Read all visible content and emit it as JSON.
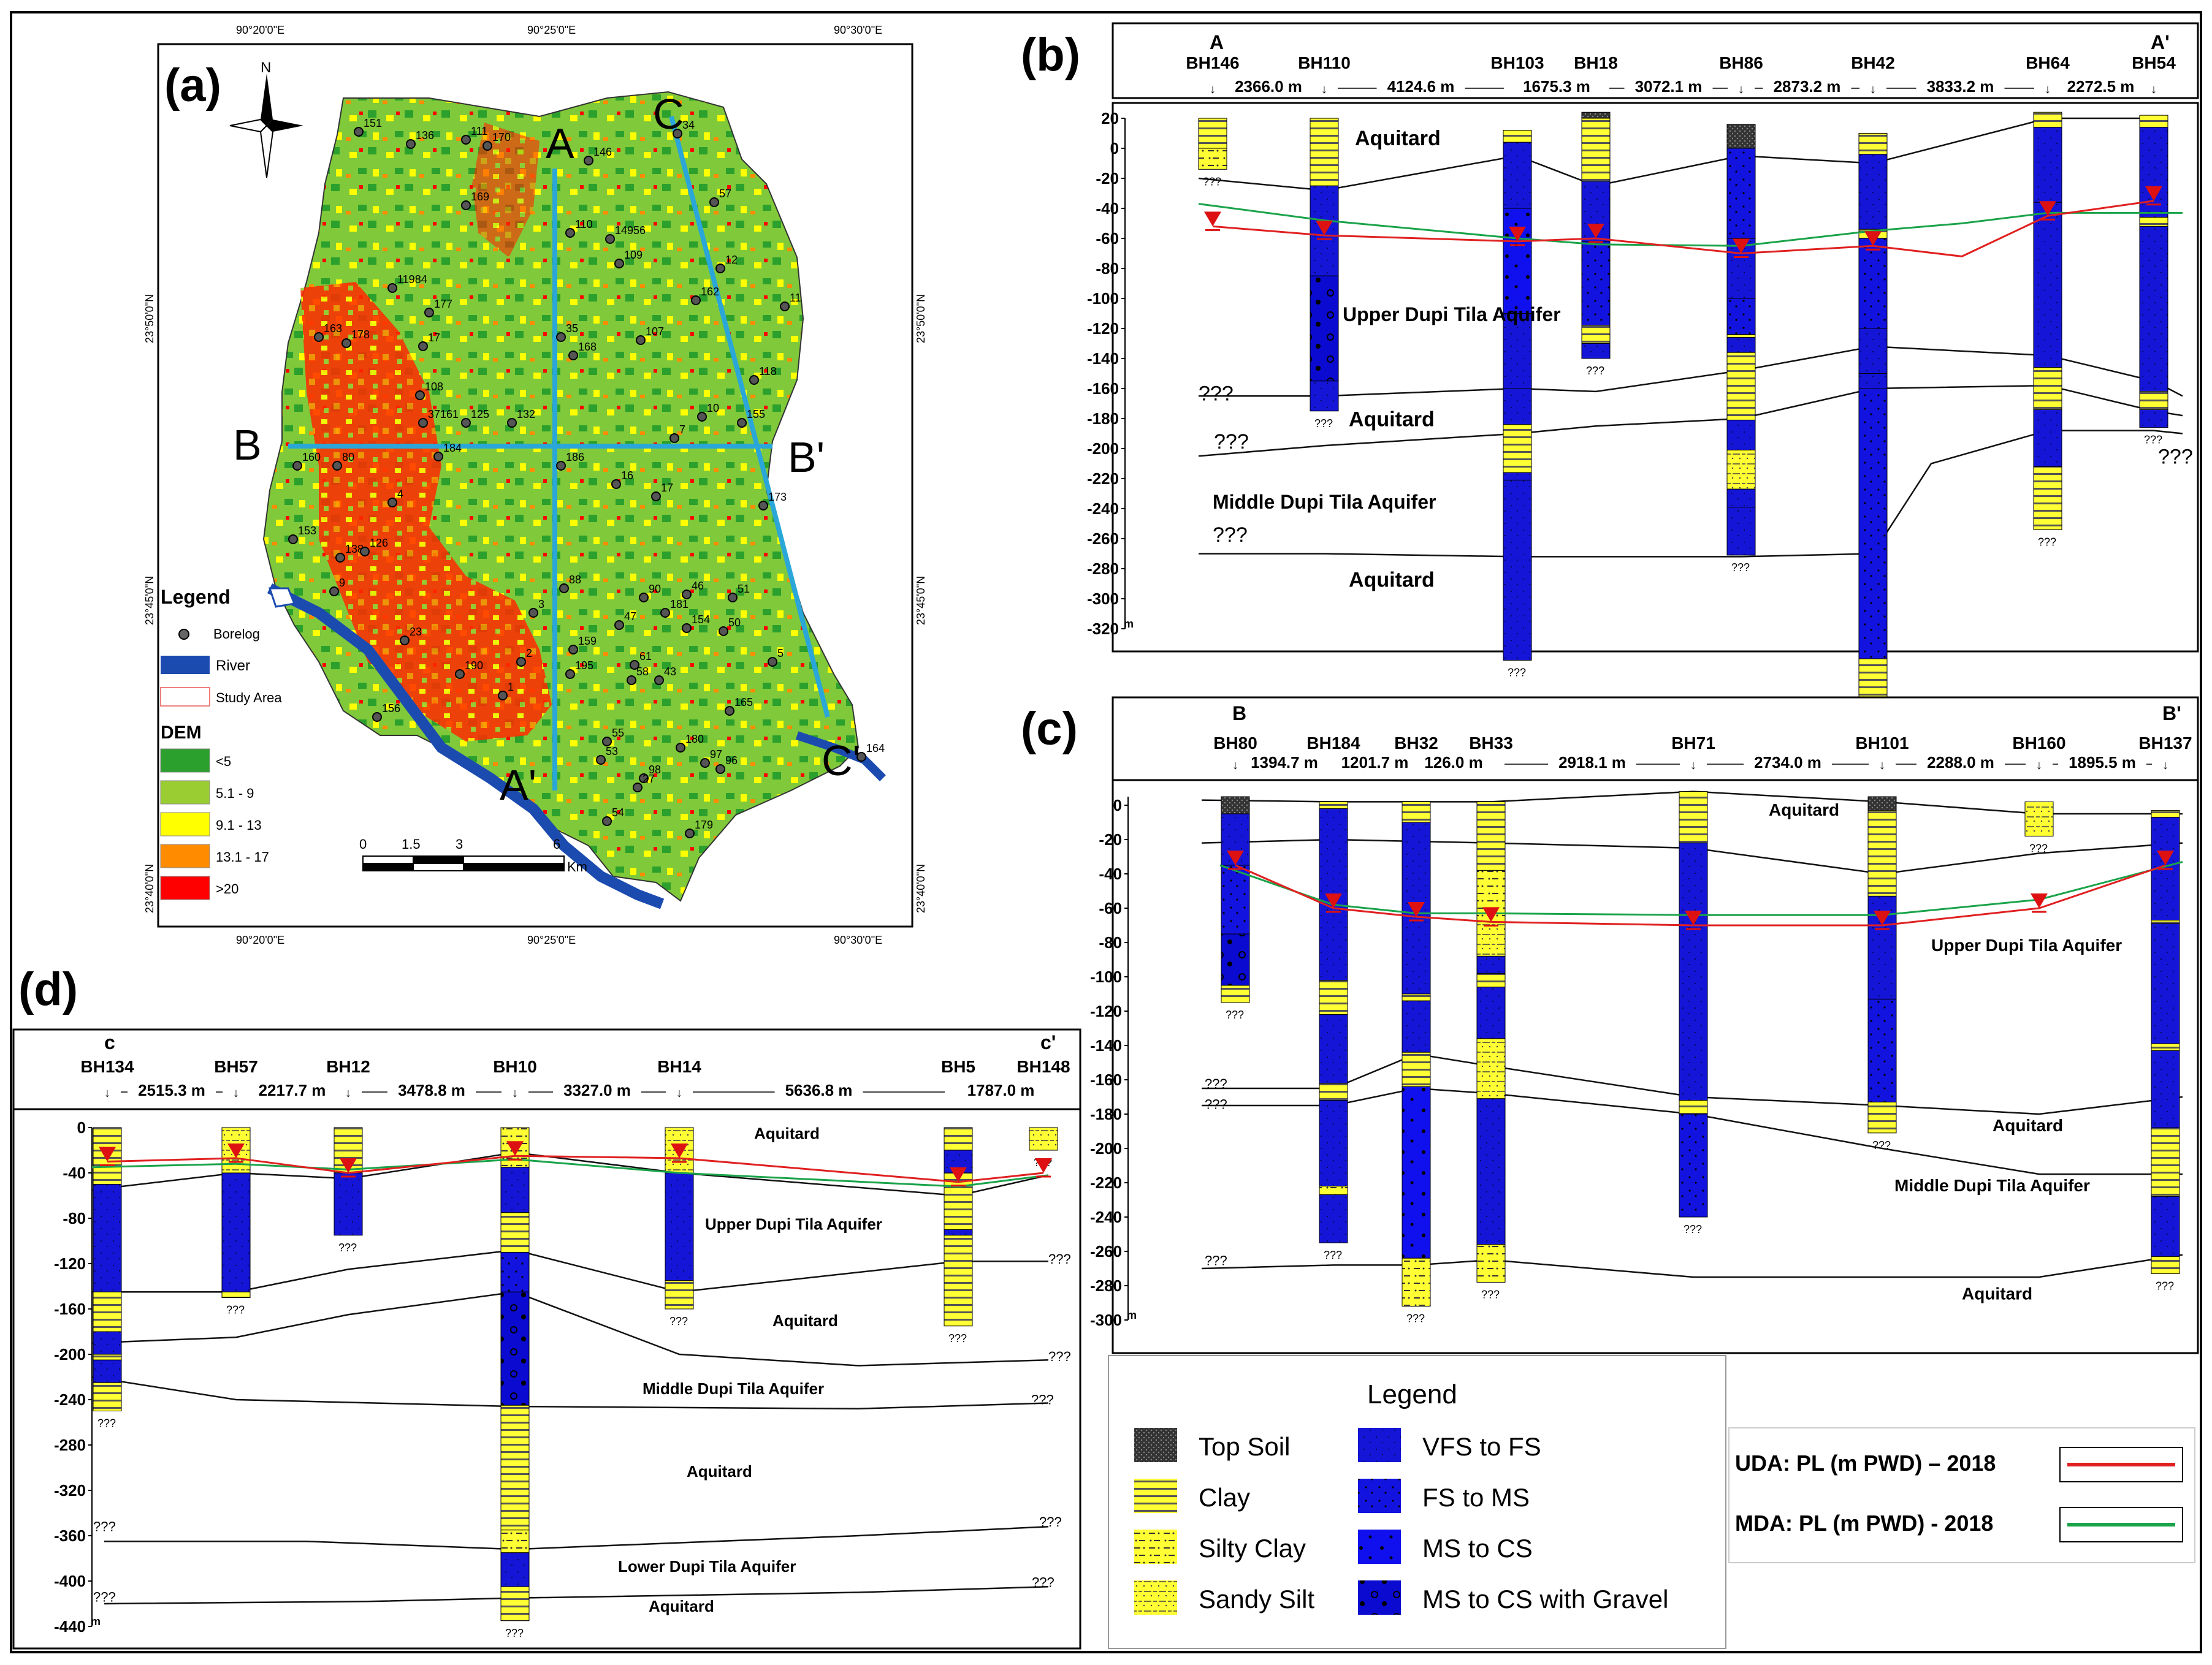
{
  "panels": {
    "a": {
      "label": "(a)",
      "north": "N",
      "graticule": {
        "top": [
          "90°20'0\"E",
          "90°25'0\"E",
          "90°30'0\"E"
        ],
        "bottom": [
          "90°20'0\"E",
          "90°25'0\"E",
          "90°30'0\"E"
        ],
        "left": [
          "23°50'0\"N",
          "23°45'0\"N",
          "23°40'0\"N"
        ],
        "right": [
          "23°50'0\"N",
          "23°45'0\"N",
          "23°40'0\"N"
        ]
      },
      "section_letters": [
        "A",
        "A'",
        "B",
        "B'",
        "C",
        "C'"
      ],
      "legend": {
        "title": "Legend",
        "items": [
          "Borelog",
          "River",
          "Study Area"
        ],
        "dem_title": "DEM",
        "dem_classes": [
          {
            "label": "<5",
            "color": "#2ca02c"
          },
          {
            "label": "5.1 - 9",
            "color": "#9acd32"
          },
          {
            "label": "9.1 - 13",
            "color": "#ffff00"
          },
          {
            "label": "13.1 - 17",
            "color": "#ff8c00"
          },
          {
            "label": ">20",
            "color": "#ff0000"
          }
        ]
      },
      "scalebar": {
        "ticks": [
          "0",
          "1.5",
          "3",
          "6"
        ],
        "unit": "Km"
      },
      "borehole_ids": [
        "151",
        "136",
        "111",
        "170",
        "146",
        "34",
        "169",
        "57",
        "110",
        "14956",
        "109",
        "12",
        "162",
        "11984",
        "177",
        "11",
        "163",
        "178",
        "17",
        "35",
        "168",
        "107",
        "108",
        "118",
        "10",
        "155",
        "37161",
        "125",
        "132",
        "7",
        "160",
        "80",
        "184",
        "186",
        "16",
        "17",
        "173",
        "153",
        "138",
        "9",
        "88",
        "90",
        "46",
        "51",
        "181",
        "154",
        "50",
        "159",
        "195",
        "47",
        "61",
        "58",
        "43",
        "5",
        "165",
        "156",
        "180",
        "97",
        "96",
        "164",
        "179",
        "55",
        "53",
        "98",
        "27",
        "54",
        "126",
        "23",
        "190",
        "1",
        "2",
        "3",
        "4"
      ]
    },
    "b": {
      "label": "(b)",
      "start": "A",
      "end": "A'",
      "boreholes": [
        "BH146",
        "BH110",
        "BH103",
        "BH18",
        "BH86",
        "BH42",
        "BH64",
        "BH54"
      ],
      "distances": [
        "2366.0 m",
        "4124.6 m",
        "1675.3 m",
        "3072.1 m",
        "2873.2 m",
        "3833.2 m",
        "2272.5 m"
      ],
      "yticks": [
        "20",
        "0",
        "-20",
        "-40",
        "-60",
        "-80",
        "-100",
        "-120",
        "-140",
        "-160",
        "-180",
        "-200",
        "-220",
        "-240",
        "-260",
        "-280",
        "-300",
        "-320"
      ],
      "yunit": "m",
      "units": [
        "Aquitard",
        "Upper Dupi Tila Aquifer",
        "Aquitard",
        "Middle Dupi Tila Aquifer",
        "Aquitard"
      ],
      "unknown": "???"
    },
    "c": {
      "label": "(c)",
      "start": "B",
      "end": "B'",
      "boreholes": [
        "BH80",
        "BH184",
        "BH32",
        "BH33",
        "BH71",
        "BH101",
        "BH160",
        "BH137"
      ],
      "distances": [
        "1394.7 m",
        "1201.7 m",
        "126.0 m",
        "2918.1 m",
        "2734.0 m",
        "2288.0 m",
        "1895.5 m"
      ],
      "yticks": [
        "0",
        "-20",
        "-40",
        "-60",
        "-80",
        "-100",
        "-120",
        "-140",
        "-160",
        "-180",
        "-200",
        "-220",
        "-240",
        "-260",
        "-280",
        "-300"
      ],
      "yunit": "m",
      "units": [
        "Aquitard",
        "Upper Dupi Tila Aquifer",
        "Aquitard",
        "Middle Dupi Tila Aquifer",
        "Aquitard"
      ],
      "unknown": "???"
    },
    "d": {
      "label": "(d)",
      "start": "c",
      "end": "c'",
      "boreholes": [
        "BH134",
        "BH57",
        "BH12",
        "BH10",
        "BH14",
        "BH5",
        "BH148"
      ],
      "distances": [
        "2515.3 m",
        "2217.7 m",
        "3478.8 m",
        "3327.0 m",
        "5636.8 m",
        "1787.0 m"
      ],
      "yticks": [
        "0",
        "-40",
        "-80",
        "-120",
        "-160",
        "-200",
        "-240",
        "-280",
        "-320",
        "-360",
        "-400",
        "-440"
      ],
      "yunit": "m",
      "units": [
        "Aquitard",
        "Upper Dupi Tila Aquifer",
        "Aquitard",
        "Middle Dupi Tila Aquifer",
        "Aquitard",
        "Lower Dupi Tila Aquifer",
        "Aquitard"
      ],
      "unknown": "???"
    }
  },
  "legend": {
    "title": "Legend",
    "lithology": [
      "Top Soil",
      "Clay",
      "Silty Clay",
      "Sandy Silt",
      "VFS to FS",
      "FS to MS",
      "MS to CS",
      "MS to CS with Gravel"
    ],
    "lines": [
      {
        "label": "UDA: PL (m PWD) – 2018",
        "color": "#e02020"
      },
      {
        "label": "MDA: PL (m PWD) - 2018",
        "color": "#1aa34a"
      }
    ]
  }
}
